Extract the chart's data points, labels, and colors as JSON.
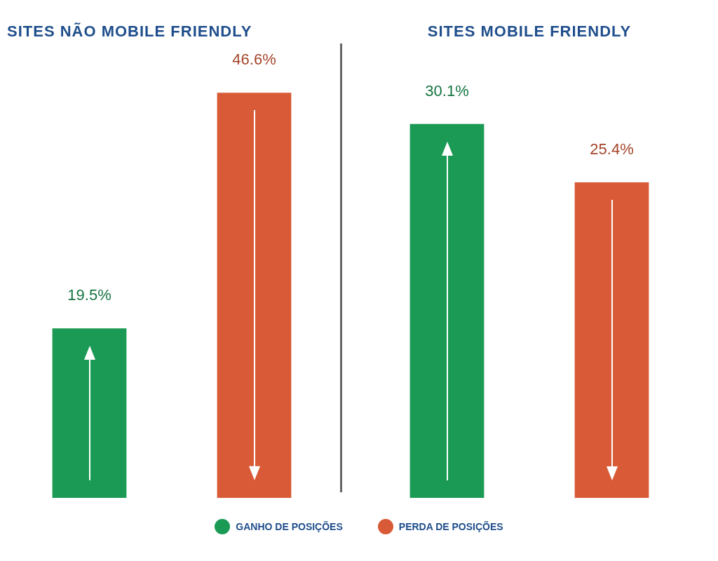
{
  "chart_data": [
    {
      "type": "bar",
      "title": "SITES NÃO MOBILE FRIENDLY",
      "categories": [
        null,
        null
      ],
      "stacked": true,
      "legend": "bottom",
      "series": [
        {
          "name": "GANHO DE POSIÇÕES",
          "color": "#1b9a55",
          "values": [
            19.5,
            null
          ],
          "value_labels": [
            "19.5%",
            null
          ]
        },
        {
          "name": "PERDA DE POSIÇÕES",
          "color": "#d95a36",
          "values": [
            null,
            46.6
          ],
          "value_labels": [
            null,
            "46.6%"
          ]
        }
      ]
    },
    {
      "type": "bar",
      "title": "SITES MOBILE FRIENDLY",
      "categories": [
        null,
        null
      ],
      "stacked": true,
      "series": [
        {
          "color": "#1b9a55",
          "values": [
            30.1,
            null
          ],
          "value_labels": [
            "30.1%",
            null
          ]
        },
        {
          "color": "#d95a36",
          "values": [
            null,
            25.4
          ],
          "value_labels": [
            null,
            "25.4%"
          ]
        }
      ]
    }
  ]
}
